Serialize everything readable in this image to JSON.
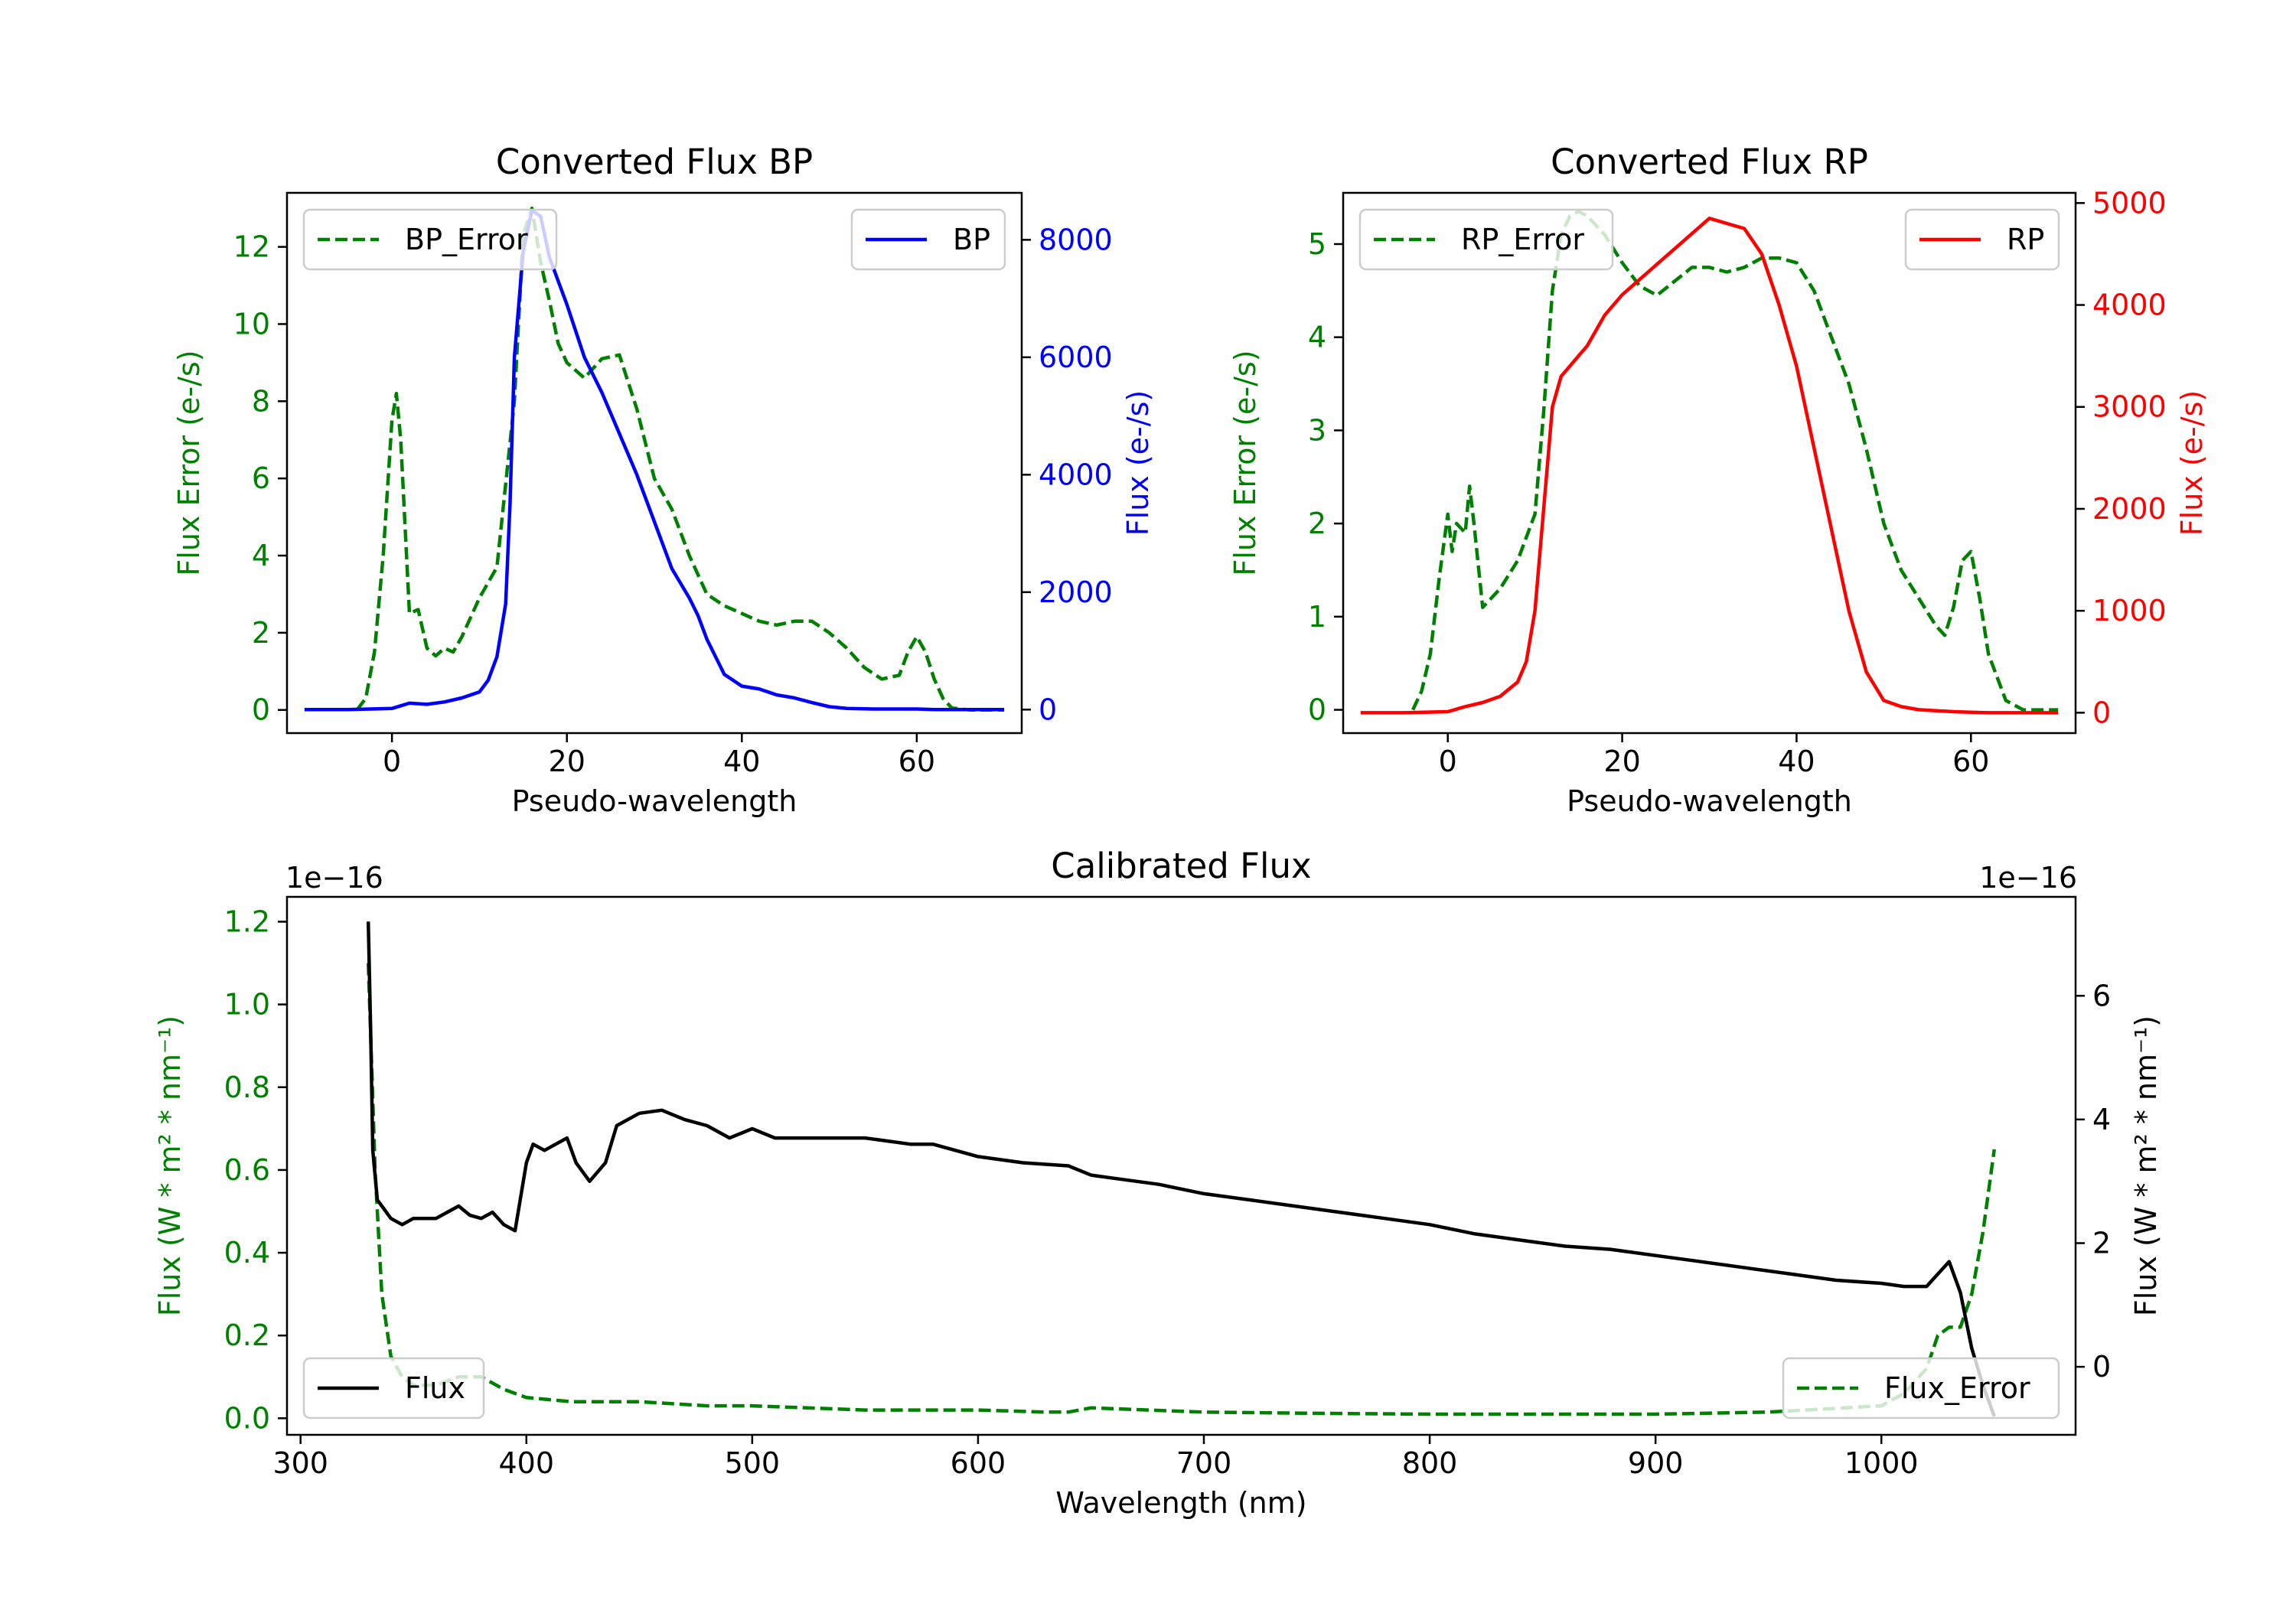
{
  "colors": {
    "green": "#008000",
    "blue": "#0000ff",
    "red": "#ff0000",
    "black": "#000000"
  },
  "chart_data": [
    {
      "id": "bp",
      "type": "line",
      "title": "Converted Flux BP",
      "xlabel": "Pseudo-wavelength",
      "ylabel_left": "Flux Error (e-/s)",
      "ylabel_right": "Flux (e-/s)",
      "xlim": [
        -12,
        72
      ],
      "ylim_left": [
        -0.6,
        13.4
      ],
      "ylim_right": [
        -400,
        8800
      ],
      "x_ticks": [
        0,
        20,
        40,
        60
      ],
      "x_tick_labels": [
        "0",
        "20",
        "40",
        "60"
      ],
      "y_left_ticks": [
        0,
        2,
        4,
        6,
        8,
        10,
        12
      ],
      "y_left_tick_labels": [
        "0",
        "2",
        "4",
        "6",
        "8",
        "10",
        "12"
      ],
      "y_right_ticks": [
        0,
        2000,
        4000,
        6000,
        8000
      ],
      "y_right_tick_labels": [
        "0",
        "2000",
        "4000",
        "6000",
        "8000"
      ],
      "legend_left": {
        "label": "BP_Error",
        "placement": "top-left"
      },
      "legend_right": {
        "label": "BP",
        "placement": "top-right"
      },
      "series": [
        {
          "name": "BP_Error",
          "axis": "left",
          "style": "dashed",
          "color": "green",
          "x": [
            -4,
            -3,
            -2,
            -1,
            0,
            0.5,
            1,
            2,
            3,
            4,
            5,
            6,
            7,
            8,
            10,
            12,
            14,
            15,
            16,
            17,
            18,
            19,
            20,
            22,
            24,
            26,
            28,
            30,
            32,
            34,
            36,
            38,
            40,
            42,
            44,
            46,
            48,
            50,
            52,
            54,
            56,
            58,
            59,
            60,
            61,
            62,
            63,
            64,
            66,
            70
          ],
          "y": [
            0.0,
            0.3,
            1.5,
            4.0,
            7.5,
            8.2,
            7.0,
            2.5,
            2.6,
            1.6,
            1.4,
            1.6,
            1.5,
            1.9,
            2.9,
            3.7,
            8.0,
            12.3,
            13.0,
            11.6,
            10.6,
            9.5,
            9.0,
            8.6,
            9.1,
            9.2,
            7.8,
            6.0,
            5.2,
            4.0,
            3.0,
            2.7,
            2.5,
            2.3,
            2.2,
            2.3,
            2.3,
            2.0,
            1.6,
            1.1,
            0.8,
            0.9,
            1.5,
            1.9,
            1.5,
            0.8,
            0.3,
            0.05,
            0.0,
            0.0
          ]
        },
        {
          "name": "BP",
          "axis": "right",
          "style": "solid",
          "color": "blue",
          "x": [
            -10,
            -5,
            0,
            2,
            4,
            6,
            8,
            10,
            11,
            12,
            13,
            13.5,
            14,
            15,
            16,
            17,
            18,
            20,
            22,
            24,
            26,
            28,
            30,
            32,
            34,
            35,
            36,
            38,
            40,
            42,
            44,
            46,
            48,
            50,
            52,
            55,
            60,
            62,
            65,
            70
          ],
          "y": [
            0,
            0,
            20,
            110,
            90,
            130,
            200,
            300,
            500,
            900,
            1800,
            3500,
            6000,
            7800,
            8500,
            8400,
            7700,
            6900,
            6000,
            5400,
            4700,
            4000,
            3200,
            2400,
            1900,
            1600,
            1200,
            600,
            400,
            350,
            250,
            200,
            120,
            50,
            20,
            10,
            10,
            0,
            0,
            0
          ]
        }
      ]
    },
    {
      "id": "rp",
      "type": "line",
      "title": "Converted Flux RP",
      "xlabel": "Pseudo-wavelength",
      "ylabel_left": "Flux Error (e-/s)",
      "ylabel_right": "Flux (e-/s)",
      "xlim": [
        -12,
        72
      ],
      "ylim_left": [
        -0.25,
        5.55
      ],
      "ylim_right": [
        -200,
        5100
      ],
      "x_ticks": [
        0,
        20,
        40,
        60
      ],
      "x_tick_labels": [
        "0",
        "20",
        "40",
        "60"
      ],
      "y_left_ticks": [
        0,
        1,
        2,
        3,
        4,
        5
      ],
      "y_left_tick_labels": [
        "0",
        "1",
        "2",
        "3",
        "4",
        "5"
      ],
      "y_right_ticks": [
        0,
        1000,
        2000,
        3000,
        4000,
        5000
      ],
      "y_right_tick_labels": [
        "0",
        "1000",
        "2000",
        "3000",
        "4000",
        "5000"
      ],
      "legend_left": {
        "label": "RP_Error",
        "placement": "top-left"
      },
      "legend_right": {
        "label": "RP",
        "placement": "top-right"
      },
      "series": [
        {
          "name": "RP_Error",
          "axis": "left",
          "style": "dashed",
          "color": "green",
          "x": [
            -4,
            -3,
            -2,
            -1,
            0,
            0.5,
            1,
            2,
            2.5,
            3,
            4,
            5,
            6,
            8,
            10,
            11,
            12,
            13,
            14,
            15,
            16,
            18,
            20,
            22,
            24,
            26,
            28,
            30,
            32,
            34,
            36,
            38,
            40,
            42,
            44,
            46,
            48,
            50,
            52,
            54,
            56,
            57,
            58,
            59,
            60,
            61,
            62,
            64,
            66,
            70
          ],
          "y": [
            0.0,
            0.2,
            0.6,
            1.4,
            2.1,
            1.7,
            2.0,
            1.9,
            2.4,
            2.0,
            1.1,
            1.2,
            1.3,
            1.6,
            2.1,
            3.2,
            4.5,
            5.1,
            5.3,
            5.35,
            5.3,
            5.1,
            4.8,
            4.55,
            4.45,
            4.6,
            4.75,
            4.75,
            4.7,
            4.75,
            4.85,
            4.85,
            4.8,
            4.5,
            4.0,
            3.5,
            2.8,
            2.0,
            1.5,
            1.2,
            0.9,
            0.8,
            1.1,
            1.6,
            1.7,
            1.2,
            0.6,
            0.1,
            0.0,
            0.0
          ]
        },
        {
          "name": "RP",
          "axis": "right",
          "style": "solid",
          "color": "red",
          "x": [
            -10,
            -5,
            0,
            2,
            4,
            6,
            8,
            9,
            10,
            11,
            12,
            13,
            14,
            15,
            16,
            18,
            20,
            22,
            24,
            26,
            28,
            30,
            32,
            34,
            36,
            38,
            40,
            42,
            44,
            46,
            48,
            50,
            52,
            54,
            56,
            58,
            60,
            62,
            66,
            70
          ],
          "y": [
            0,
            0,
            10,
            60,
            100,
            160,
            300,
            500,
            1000,
            2000,
            3000,
            3300,
            3400,
            3500,
            3600,
            3900,
            4100,
            4250,
            4400,
            4550,
            4700,
            4850,
            4800,
            4750,
            4500,
            4000,
            3400,
            2600,
            1800,
            1000,
            400,
            120,
            60,
            30,
            20,
            10,
            5,
            0,
            0,
            0
          ]
        }
      ]
    },
    {
      "id": "calibrated",
      "type": "line",
      "title": "Calibrated Flux",
      "xlabel": "Wavelength (nm)",
      "ylabel_left": "Flux (W * m² * nm⁻¹)",
      "ylabel_right": "Flux (W * m² * nm⁻¹)",
      "offset_left": "1e−16",
      "offset_right": "1e−16",
      "xlim": [
        294,
        1086
      ],
      "ylim_left": [
        -0.04,
        1.26
      ],
      "ylim_right": [
        -1.1,
        7.6
      ],
      "x_ticks": [
        300,
        400,
        500,
        600,
        700,
        800,
        900,
        1000
      ],
      "x_tick_labels": [
        "300",
        "400",
        "500",
        "600",
        "700",
        "800",
        "900",
        "1000"
      ],
      "y_left_ticks": [
        0.0,
        0.2,
        0.4,
        0.6,
        0.8,
        1.0,
        1.2
      ],
      "y_left_tick_labels": [
        "0.0",
        "0.2",
        "0.4",
        "0.6",
        "0.8",
        "1.0",
        "1.2"
      ],
      "y_right_ticks": [
        0,
        2,
        4,
        6
      ],
      "y_right_tick_labels": [
        "0",
        "2",
        "4",
        "6"
      ],
      "legend_left": {
        "label": "Flux",
        "placement": "bottom-left"
      },
      "legend_right": {
        "label": "Flux_Error",
        "placement": "bottom-right"
      },
      "series": [
        {
          "name": "Flux_Error",
          "axis": "left",
          "style": "dashed",
          "color": "green",
          "x": [
            330,
            333,
            336,
            340,
            345,
            350,
            360,
            370,
            380,
            390,
            400,
            420,
            450,
            480,
            500,
            550,
            600,
            630,
            640,
            650,
            700,
            750,
            800,
            850,
            900,
            950,
            1000,
            1010,
            1020,
            1025,
            1030,
            1035,
            1040,
            1045,
            1050
          ],
          "y": [
            1.1,
            0.6,
            0.3,
            0.15,
            0.1,
            0.08,
            0.08,
            0.1,
            0.1,
            0.07,
            0.05,
            0.04,
            0.04,
            0.03,
            0.03,
            0.02,
            0.02,
            0.015,
            0.015,
            0.025,
            0.015,
            0.012,
            0.01,
            0.01,
            0.01,
            0.015,
            0.03,
            0.06,
            0.12,
            0.2,
            0.22,
            0.22,
            0.3,
            0.45,
            0.65
          ]
        },
        {
          "name": "Flux",
          "axis": "right",
          "style": "solid",
          "color": "black",
          "x": [
            330,
            331,
            332,
            334,
            336,
            340,
            345,
            350,
            355,
            360,
            365,
            370,
            375,
            380,
            385,
            390,
            395,
            400,
            403,
            408,
            413,
            418,
            422,
            428,
            435,
            440,
            450,
            460,
            470,
            480,
            490,
            500,
            510,
            520,
            530,
            550,
            570,
            580,
            600,
            620,
            640,
            650,
            660,
            680,
            700,
            720,
            740,
            760,
            780,
            800,
            820,
            840,
            860,
            880,
            900,
            920,
            940,
            960,
            980,
            1000,
            1010,
            1020,
            1025,
            1030,
            1035,
            1040,
            1045,
            1050
          ],
          "y": [
            7.2,
            5.5,
            3.5,
            2.7,
            2.6,
            2.4,
            2.3,
            2.4,
            2.4,
            2.4,
            2.5,
            2.6,
            2.45,
            2.4,
            2.5,
            2.3,
            2.2,
            3.3,
            3.6,
            3.5,
            3.6,
            3.7,
            3.3,
            3.0,
            3.3,
            3.9,
            4.1,
            4.15,
            4.0,
            3.9,
            3.7,
            3.85,
            3.7,
            3.7,
            3.7,
            3.7,
            3.6,
            3.6,
            3.4,
            3.3,
            3.25,
            3.1,
            3.05,
            2.95,
            2.8,
            2.7,
            2.6,
            2.5,
            2.4,
            2.3,
            2.15,
            2.05,
            1.95,
            1.9,
            1.8,
            1.7,
            1.6,
            1.5,
            1.4,
            1.35,
            1.3,
            1.3,
            1.5,
            1.7,
            1.2,
            0.3,
            -0.3,
            -0.8
          ]
        }
      ]
    }
  ]
}
